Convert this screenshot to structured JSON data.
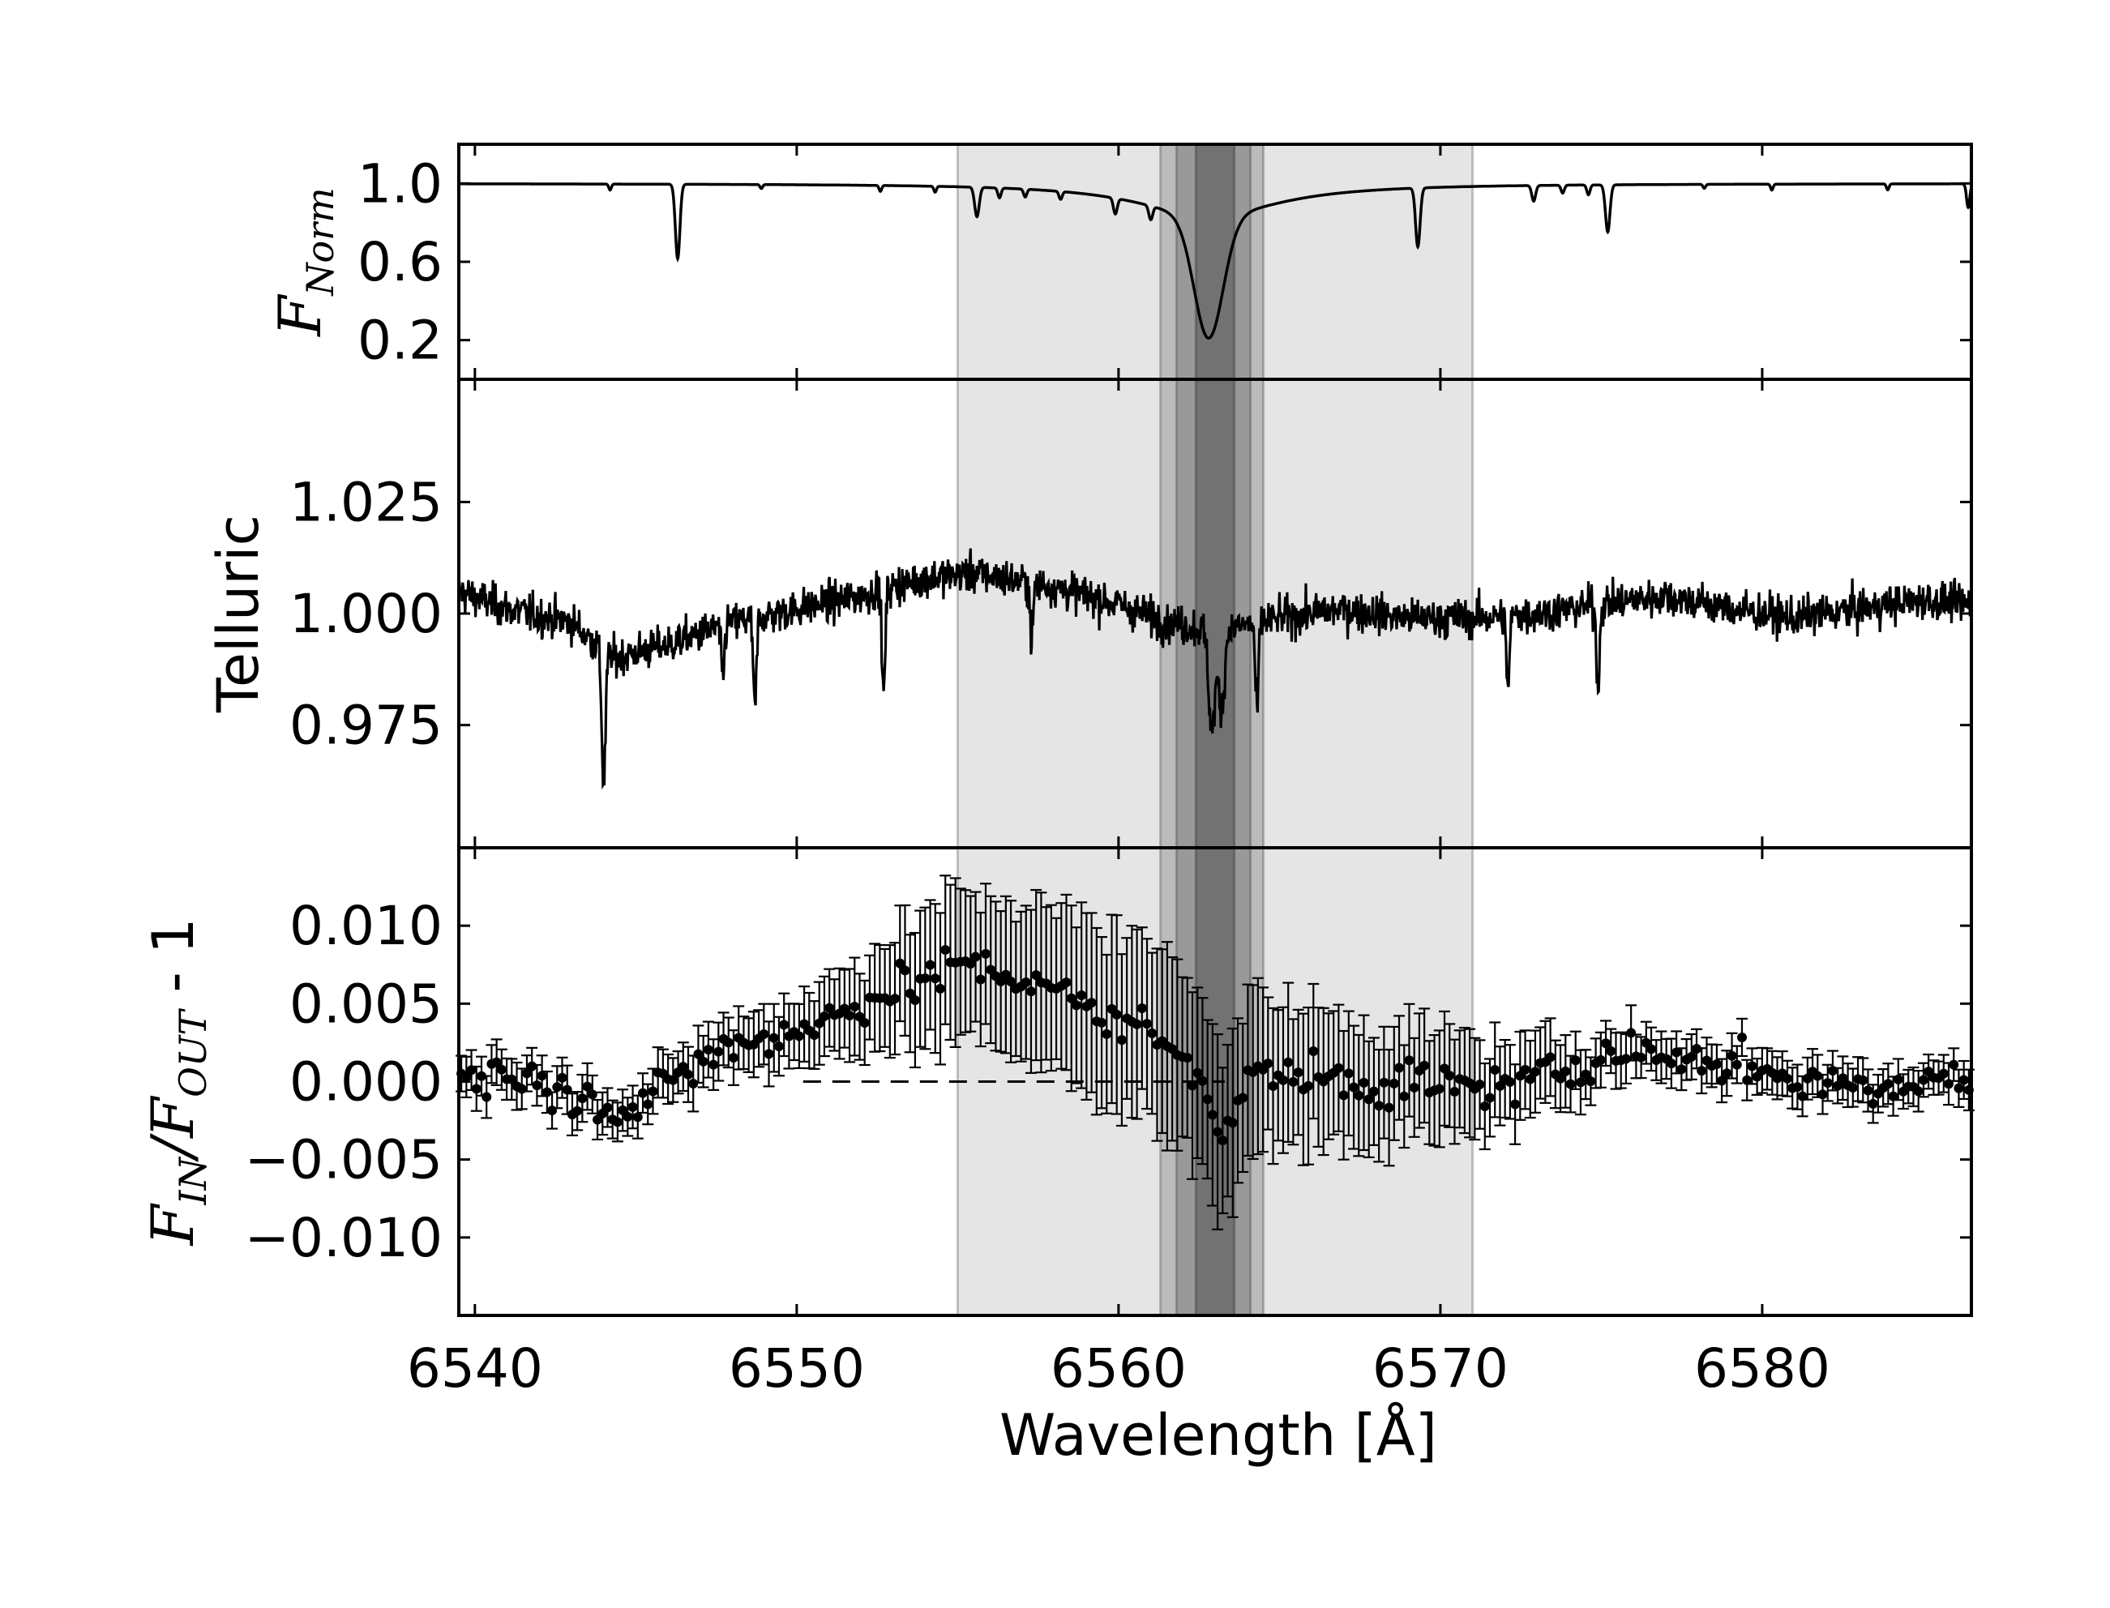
{
  "chart_data": {
    "type": "line",
    "shared_x": {
      "xlabel": "Wavelength [Å]",
      "xlim": [
        6539.5,
        6586.5
      ],
      "ticks": [
        6540,
        6550,
        6560,
        6570,
        6580
      ],
      "tick_labels": [
        "6540",
        "6550",
        "6560",
        "6570",
        "6580"
      ]
    },
    "shaded_bands": [
      {
        "x0": 6555.0,
        "x1": 6571.0,
        "opacity": 0.1
      },
      {
        "x0": 6561.3,
        "x1": 6564.5,
        "opacity": 0.18
      },
      {
        "x0": 6561.8,
        "x1": 6564.1,
        "opacity": 0.18
      },
      {
        "x0": 6562.4,
        "x1": 6563.6,
        "opacity": 0.25
      }
    ],
    "panels": [
      {
        "id": "norm",
        "ylabel": "F_Norm",
        "ylabel_base": "F",
        "ylabel_sub": "Norm",
        "ylim": [
          0.0,
          1.2
        ],
        "ticks": [
          1.0,
          0.6,
          0.2
        ],
        "tick_labels": [
          "1.0",
          "0.6",
          "0.2"
        ],
        "continuum": 1.0,
        "lines": [
          {
            "center": 6546.3,
            "depth": 0.38,
            "width": 0.07
          },
          {
            "center": 6569.3,
            "depth": 0.3,
            "width": 0.07
          },
          {
            "center": 6575.2,
            "depth": 0.24,
            "width": 0.07
          },
          {
            "center": 6555.6,
            "depth": 0.15,
            "width": 0.07
          },
          {
            "center": 6559.9,
            "depth": 0.08,
            "width": 0.06
          },
          {
            "center": 6561.0,
            "depth": 0.07,
            "width": 0.06
          },
          {
            "center": 6572.9,
            "depth": 0.08,
            "width": 0.06
          },
          {
            "center": 6573.8,
            "depth": 0.04,
            "width": 0.05
          },
          {
            "center": 6574.6,
            "depth": 0.05,
            "width": 0.05
          },
          {
            "center": 6544.2,
            "depth": 0.03,
            "width": 0.04
          },
          {
            "center": 6548.9,
            "depth": 0.02,
            "width": 0.04
          },
          {
            "center": 6552.6,
            "depth": 0.03,
            "width": 0.04
          },
          {
            "center": 6554.3,
            "depth": 0.03,
            "width": 0.04
          },
          {
            "center": 6556.3,
            "depth": 0.05,
            "width": 0.05
          },
          {
            "center": 6557.1,
            "depth": 0.04,
            "width": 0.05
          },
          {
            "center": 6558.2,
            "depth": 0.04,
            "width": 0.05
          },
          {
            "center": 6578.2,
            "depth": 0.02,
            "width": 0.04
          },
          {
            "center": 6580.3,
            "depth": 0.03,
            "width": 0.04
          },
          {
            "center": 6583.9,
            "depth": 0.03,
            "width": 0.04
          },
          {
            "center": 6586.4,
            "depth": 0.12,
            "width": 0.05
          }
        ],
        "halpha": {
          "center": 6562.8,
          "core_depth": 0.62,
          "core_width": 0.45,
          "wing_depth": 0.17,
          "wing_width": 2.6
        }
      },
      {
        "id": "telluric",
        "ylabel": "Telluric",
        "ylim": [
          0.9475,
          1.0525
        ],
        "ticks": [
          1.025,
          1.0,
          0.975
        ],
        "tick_labels": [
          "1.025",
          "1.000",
          "0.975"
        ],
        "baseline_knots": {
          "x": [
            6539.5,
            6541,
            6543,
            6544.3,
            6546,
            6548,
            6550,
            6552,
            6554,
            6555.5,
            6558,
            6560,
            6561.5,
            6563,
            6565,
            6567,
            6569,
            6571,
            6573,
            6575,
            6577,
            6579,
            6581,
            6583,
            6585,
            6586.5
          ],
          "y": [
            1.005,
            1.001,
            0.998,
            0.99,
            0.993,
            0.998,
            1.001,
            1.004,
            1.008,
            1.009,
            1.006,
            1.002,
            0.998,
            0.996,
            0.999,
            1.001,
            0.999,
            0.999,
            1.0,
            1.002,
            1.004,
            1.001,
            0.999,
            1.001,
            1.003,
            1.002
          ]
        },
        "noise": 0.0022,
        "lines": [
          {
            "center": 6544.0,
            "depth": 0.03,
            "width": 0.06
          },
          {
            "center": 6547.7,
            "depth": 0.012,
            "width": 0.05
          },
          {
            "center": 6548.7,
            "depth": 0.021,
            "width": 0.05
          },
          {
            "center": 6552.7,
            "depth": 0.024,
            "width": 0.05
          },
          {
            "center": 6557.3,
            "depth": 0.012,
            "width": 0.05
          },
          {
            "center": 6562.9,
            "depth": 0.022,
            "width": 0.1
          },
          {
            "center": 6563.2,
            "depth": 0.018,
            "width": 0.09
          },
          {
            "center": 6564.3,
            "depth": 0.02,
            "width": 0.05
          },
          {
            "center": 6572.1,
            "depth": 0.016,
            "width": 0.05
          },
          {
            "center": 6574.9,
            "depth": 0.018,
            "width": 0.05
          }
        ]
      },
      {
        "id": "ratio",
        "ylabel": "F_IN/F_OUT - 1",
        "ylabel_parts": [
          "F",
          "IN",
          "/",
          "F",
          "OUT",
          " - 1"
        ],
        "ylim": [
          -0.015,
          0.015
        ],
        "ticks": [
          0.01,
          0.005,
          0.0,
          -0.005,
          -0.01
        ],
        "tick_labels": [
          "0.010",
          "0.005",
          "0.000",
          "−0.005",
          "−0.010"
        ],
        "zero_line": 0.0,
        "trend_knots": {
          "x": [
            6539.5,
            6541,
            6543,
            6545,
            6547,
            6549,
            6551,
            6553,
            6555,
            6557,
            6559,
            6561,
            6562.5,
            6563.3,
            6564,
            6566,
            6568,
            6570,
            6572,
            6574,
            6575.5,
            6577,
            6579,
            6581,
            6583,
            6585,
            6586.5
          ],
          "y": [
            0.0008,
            0.0005,
            -0.0008,
            -0.002,
            0.0015,
            0.003,
            0.004,
            0.006,
            0.0075,
            0.0065,
            0.005,
            0.003,
            0.001,
            -0.004,
            0.0005,
            0.0003,
            -0.0003,
            0.0,
            -0.0005,
            0.001,
            0.002,
            0.0015,
            0.0012,
            0.0002,
            0.0,
            0.0,
            0.0
          ]
        },
        "err_knots": {
          "x": [
            6539.5,
            6545,
            6550,
            6553,
            6555,
            6558,
            6561,
            6563,
            6566,
            6569,
            6572,
            6575,
            6580,
            6586.5
          ],
          "y": [
            0.0013,
            0.0014,
            0.002,
            0.0035,
            0.0048,
            0.0052,
            0.006,
            0.0055,
            0.0045,
            0.0035,
            0.0028,
            0.0016,
            0.0013,
            0.0012
          ]
        },
        "n_points": 300,
        "noise": 0.0007
      }
    ]
  }
}
